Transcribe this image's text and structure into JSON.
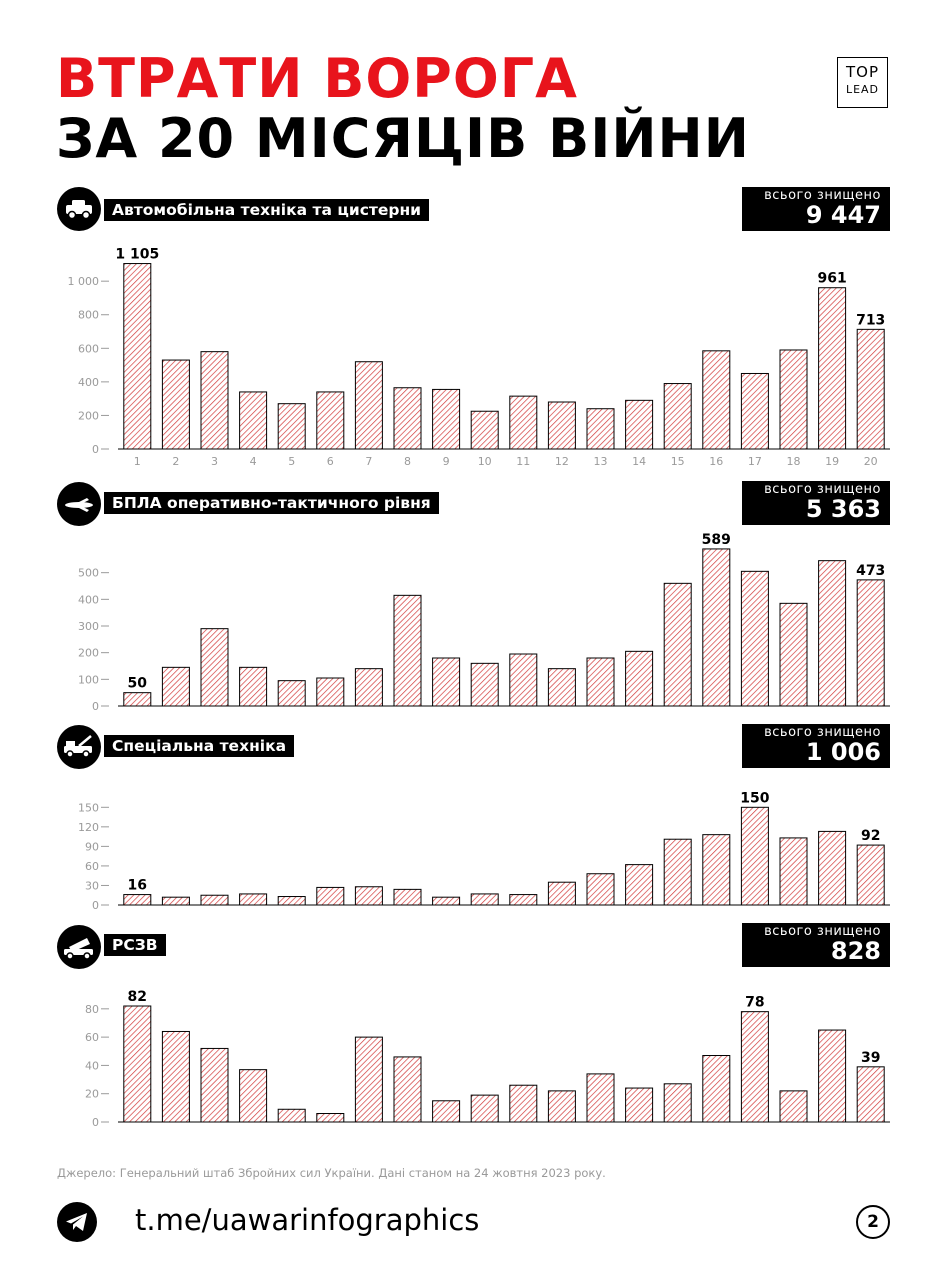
{
  "header": {
    "title_line1": "ВТРАТИ ВОРОГА",
    "title_line2": "ЗА 20 МІСЯЦІВ ВІЙНИ",
    "logo_top": "TOP",
    "logo_bottom": "LEAD"
  },
  "total_caption": "всього знищено",
  "chart_data": [
    {
      "type": "bar",
      "title": "Автомобільна техніка та цистерни",
      "icon": "truck-icon",
      "total": "9 447",
      "categories": [
        "1",
        "2",
        "3",
        "4",
        "5",
        "6",
        "7",
        "8",
        "9",
        "10",
        "11",
        "12",
        "13",
        "14",
        "15",
        "16",
        "17",
        "18",
        "19",
        "20"
      ],
      "values": [
        1105,
        530,
        580,
        340,
        270,
        340,
        520,
        365,
        355,
        225,
        315,
        280,
        240,
        290,
        390,
        585,
        450,
        590,
        961,
        713
      ],
      "value_labels": {
        "0": "1 105",
        "18": "961",
        "19": "713"
      },
      "yticks": [
        0,
        200,
        400,
        600,
        800,
        1000
      ],
      "ytick_labels": [
        "0",
        "200",
        "400",
        "600",
        "800",
        "1 000"
      ],
      "ylim": [
        0,
        1150
      ],
      "show_xticks": true
    },
    {
      "type": "bar",
      "title": "БПЛА оперативно-тактичного рівня",
      "icon": "drone-icon",
      "total": "5 363",
      "categories": [
        "1",
        "2",
        "3",
        "4",
        "5",
        "6",
        "7",
        "8",
        "9",
        "10",
        "11",
        "12",
        "13",
        "14",
        "15",
        "16",
        "17",
        "18",
        "19",
        "20"
      ],
      "values": [
        50,
        145,
        290,
        145,
        95,
        105,
        140,
        415,
        180,
        160,
        195,
        140,
        180,
        205,
        460,
        589,
        505,
        385,
        545,
        473
      ],
      "value_labels": {
        "0": "50",
        "15": "589",
        "19": "473"
      },
      "yticks": [
        0,
        100,
        200,
        300,
        400,
        500
      ],
      "ytick_labels": [
        "0",
        "100",
        "200",
        "300",
        "400",
        "500"
      ],
      "ylim": [
        0,
        600
      ],
      "show_xticks": false
    },
    {
      "type": "bar",
      "title": "Спеціальна техніка",
      "icon": "special-vehicle-icon",
      "total": "1 006",
      "categories": [
        "1",
        "2",
        "3",
        "4",
        "5",
        "6",
        "7",
        "8",
        "9",
        "10",
        "11",
        "12",
        "13",
        "14",
        "15",
        "16",
        "17",
        "18",
        "19",
        "20"
      ],
      "values": [
        16,
        12,
        15,
        17,
        13,
        27,
        28,
        24,
        12,
        17,
        16,
        35,
        48,
        62,
        101,
        108,
        150,
        103,
        113,
        92
      ],
      "value_labels": {
        "0": "16",
        "16": "150",
        "19": "92"
      },
      "yticks": [
        0,
        30,
        60,
        90,
        120,
        150
      ],
      "ytick_labels": [
        "0",
        "30",
        "60",
        "90",
        "120",
        "150"
      ],
      "ylim": [
        0,
        152
      ],
      "show_xticks": false
    },
    {
      "type": "bar",
      "title": "РСЗВ",
      "icon": "mlrs-icon",
      "total": "828",
      "categories": [
        "1",
        "2",
        "3",
        "4",
        "5",
        "6",
        "7",
        "8",
        "9",
        "10",
        "11",
        "12",
        "13",
        "14",
        "15",
        "16",
        "17",
        "18",
        "19",
        "20"
      ],
      "values": [
        82,
        64,
        52,
        37,
        9,
        6,
        60,
        46,
        15,
        19,
        26,
        22,
        34,
        24,
        27,
        47,
        78,
        22,
        65,
        39
      ],
      "value_labels": {
        "0": "82",
        "16": "78",
        "19": "39"
      },
      "yticks": [
        0,
        20,
        40,
        60,
        80
      ],
      "ytick_labels": [
        "0",
        "20",
        "40",
        "60",
        "80"
      ],
      "ylim": [
        0,
        82
      ],
      "show_xticks": false
    }
  ],
  "colors": {
    "accent_red": "#e8141c",
    "hatch_red": "#d23a3a",
    "axis_gray": "#9a9a9a",
    "black": "#000000"
  },
  "footer": {
    "source": "Джерело: Генеральний штаб Збройних сил України. Дані станом на 24 жовтня 2023 року.",
    "telegram_url": "t.me/uawarinfographics",
    "page_number": "2"
  }
}
